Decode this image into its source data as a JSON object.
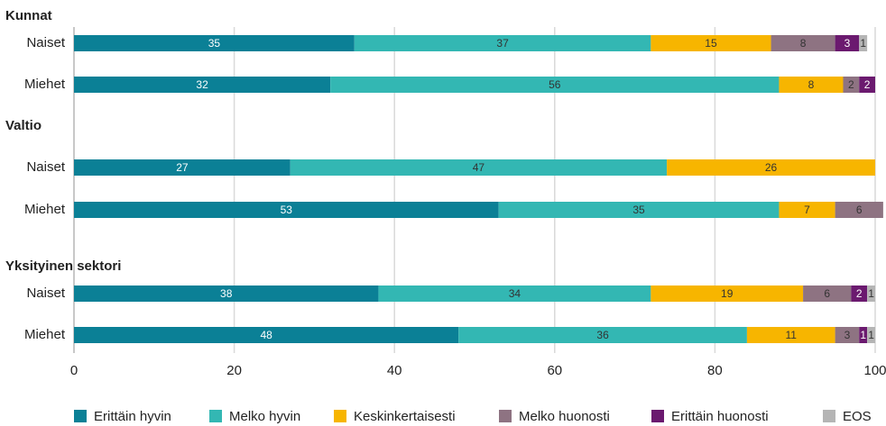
{
  "chart_data": {
    "type": "stacked-bar-horizontal",
    "groups": [
      {
        "name": "Kunnat",
        "categories": [
          "Naiset",
          "Miehet"
        ]
      },
      {
        "name": "Valtio",
        "categories": [
          "Naiset",
          "Miehet"
        ]
      },
      {
        "name": "Yksityinen sektori",
        "categories": [
          "Naiset",
          "Miehet"
        ]
      }
    ],
    "series": [
      {
        "name": "Erittäin hyvin",
        "color": "#0b8096",
        "label_color": "#ffffff",
        "values": [
          35,
          32,
          27,
          53,
          38,
          48
        ]
      },
      {
        "name": "Melko hyvin",
        "color": "#33b7b3",
        "label_color": "#333333",
        "values": [
          37,
          56,
          47,
          35,
          34,
          36
        ]
      },
      {
        "name": "Keskinkertaisesti",
        "color": "#f7b500",
        "label_color": "#333333",
        "values": [
          15,
          8,
          26,
          7,
          19,
          11
        ]
      },
      {
        "name": "Melko huonosti",
        "color": "#8e7382",
        "label_color": "#333333",
        "values": [
          8,
          2,
          null,
          6,
          6,
          3
        ]
      },
      {
        "name": "Erittäin huonosti",
        "color": "#6b1a6f",
        "label_color": "#ffffff",
        "values": [
          3,
          2,
          null,
          null,
          2,
          1
        ]
      },
      {
        "name": "EOS",
        "color": "#b5b5b5",
        "label_color": "#333333",
        "values": [
          1,
          null,
          null,
          null,
          1,
          1
        ]
      }
    ],
    "xlim": [
      0,
      100
    ],
    "xticks": [
      0,
      20,
      40,
      60,
      80,
      100
    ],
    "grid": true,
    "legend": "bottom"
  }
}
